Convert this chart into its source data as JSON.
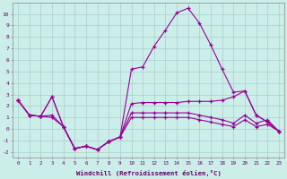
{
  "xlabel": "Windchill (Refroidissement éolien,°C)",
  "background_color": "#cceee8",
  "grid_color": "#aacccc",
  "line_color": "#990099",
  "hours": [
    0,
    1,
    2,
    3,
    4,
    5,
    6,
    7,
    8,
    9,
    10,
    11,
    12,
    13,
    14,
    15,
    16,
    17,
    18,
    19,
    20,
    21,
    22,
    23
  ],
  "series_main": [
    2.5,
    1.2,
    1.1,
    2.8,
    0.2,
    -1.7,
    -1.5,
    -1.8,
    -1.1,
    -0.7,
    5.2,
    5.4,
    7.2,
    8.6,
    10.1,
    10.5,
    9.2,
    7.3,
    5.2,
    3.2,
    3.3,
    1.2,
    0.6,
    -0.2
  ],
  "series_upper": [
    2.5,
    1.2,
    1.1,
    2.8,
    0.2,
    -1.7,
    -1.5,
    -1.8,
    -1.1,
    -0.7,
    2.2,
    2.3,
    2.3,
    2.3,
    2.3,
    2.4,
    2.4,
    2.4,
    2.5,
    2.8,
    3.3,
    1.2,
    0.6,
    -0.2
  ],
  "series_lower": [
    2.5,
    1.2,
    1.1,
    1.2,
    0.2,
    -1.7,
    -1.5,
    -1.8,
    -1.1,
    -0.7,
    1.4,
    1.4,
    1.4,
    1.4,
    1.4,
    1.4,
    1.2,
    1.0,
    0.8,
    0.5,
    1.2,
    0.5,
    0.8,
    -0.2
  ],
  "series_bottom": [
    2.5,
    1.2,
    1.1,
    1.0,
    0.2,
    -1.7,
    -1.5,
    -1.8,
    -1.1,
    -0.7,
    1.0,
    1.0,
    1.0,
    1.0,
    1.0,
    1.0,
    0.8,
    0.6,
    0.4,
    0.2,
    0.8,
    0.2,
    0.4,
    -0.2
  ],
  "ylim": [
    -2.5,
    11.0
  ],
  "yticks": [
    -2,
    -1,
    0,
    1,
    2,
    3,
    4,
    5,
    6,
    7,
    8,
    9,
    10
  ]
}
